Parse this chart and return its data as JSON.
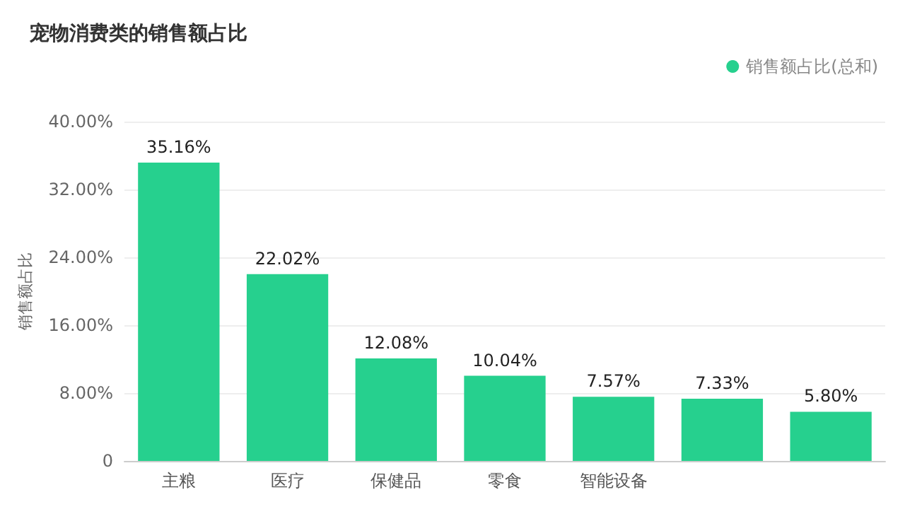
{
  "chart_data": {
    "type": "bar",
    "title": "宠物消费类的销售额占比",
    "ylabel": "销售额占比",
    "categories": [
      "主粮",
      "医疗",
      "保健品",
      "零食",
      "智能设备",
      null,
      null
    ],
    "series": [
      {
        "name": "销售额占比(总和)",
        "color": "#26d08e",
        "values": [
          35.16,
          22.02,
          12.08,
          10.04,
          7.57,
          7.33,
          5.8
        ],
        "value_labels": [
          "35.16%",
          "22.02%",
          "12.08%",
          "10.04%",
          "7.57%",
          "7.33%",
          "5.80%"
        ]
      }
    ],
    "ylim": [
      0,
      40
    ],
    "yticks": [
      0,
      {
        "value": 8,
        "label": "8.00%"
      },
      {
        "value": 16,
        "label": "16.00%"
      },
      {
        "value": 24,
        "label": "24.00%"
      },
      {
        "value": 32,
        "label": "32.00%"
      },
      {
        "value": 40,
        "label": "40.00%"
      }
    ],
    "grid": "y",
    "legend": "top right"
  }
}
